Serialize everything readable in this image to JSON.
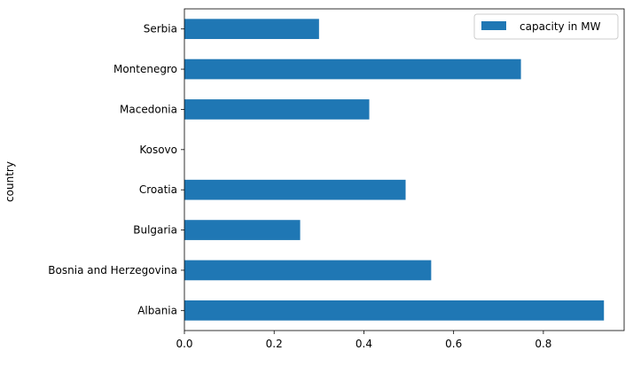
{
  "chart_data": {
    "type": "bar",
    "orientation": "horizontal",
    "ylabel": "country",
    "xlabel": "",
    "categories": [
      "Albania",
      "Bosnia and Herzegovina",
      "Bulgaria",
      "Croatia",
      "Kosovo",
      "Macedonia",
      "Montenegro",
      "Serbia"
    ],
    "series": [
      {
        "name": "capacity in MW",
        "color": "#1f77b4",
        "values": [
          0.935,
          0.55,
          0.258,
          0.493,
          0.0,
          0.412,
          0.75,
          0.3
        ]
      }
    ],
    "xlim": [
      0,
      0.98
    ],
    "xticks": [
      0.0,
      0.2,
      0.4,
      0.6,
      0.8
    ],
    "xtick_labels": [
      "0.0",
      "0.2",
      "0.4",
      "0.6",
      "0.8"
    ],
    "grid": false,
    "legend": {
      "position": "top-right",
      "entries": [
        "capacity in MW"
      ]
    }
  }
}
